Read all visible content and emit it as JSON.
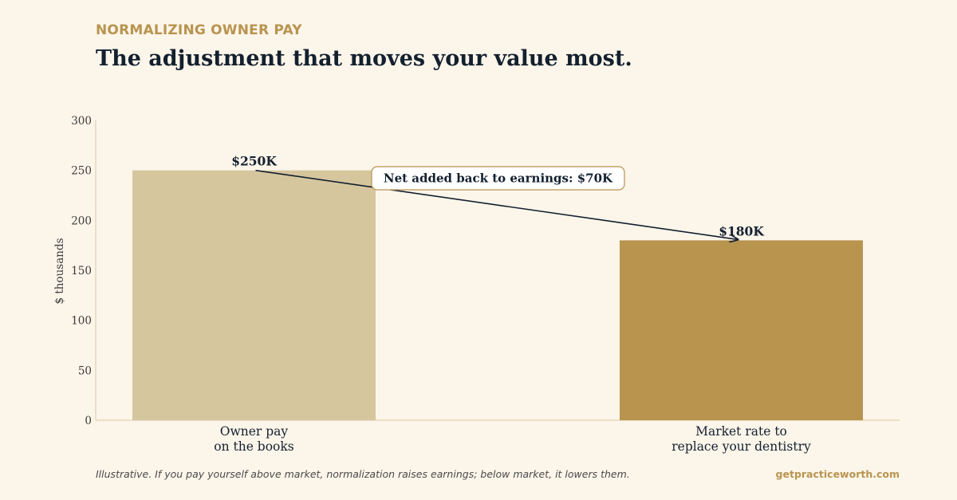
{
  "header": {
    "eyebrow": "NORMALIZING OWNER PAY",
    "title": "The adjustment that moves your value most."
  },
  "chart_data": {
    "type": "bar",
    "categories": [
      [
        "Owner pay",
        "on the books"
      ],
      [
        "Market rate to",
        "replace your dentistry"
      ]
    ],
    "values": [
      250,
      180
    ],
    "value_labels": [
      "$250K",
      "$180K"
    ],
    "bar_colors": [
      "#d6c69e",
      "#b8944f"
    ],
    "ylabel": "$ thousands",
    "ylim": [
      0,
      300
    ],
    "yticks": [
      0,
      50,
      100,
      150,
      200,
      250,
      300
    ],
    "grid": false,
    "annotation": {
      "text": "Net added back to earnings: $70K",
      "from_category": 0,
      "to_category": 1
    }
  },
  "footer": {
    "note": "Illustrative. If you pay yourself above market, normalization raises earnings; below market, it lowers them.",
    "brand": "getpracticeworth.com"
  },
  "colors": {
    "background": "#fcf5ea",
    "accent": "#b8944f",
    "ink": "#13202f",
    "axis": "#dcc9a3"
  }
}
